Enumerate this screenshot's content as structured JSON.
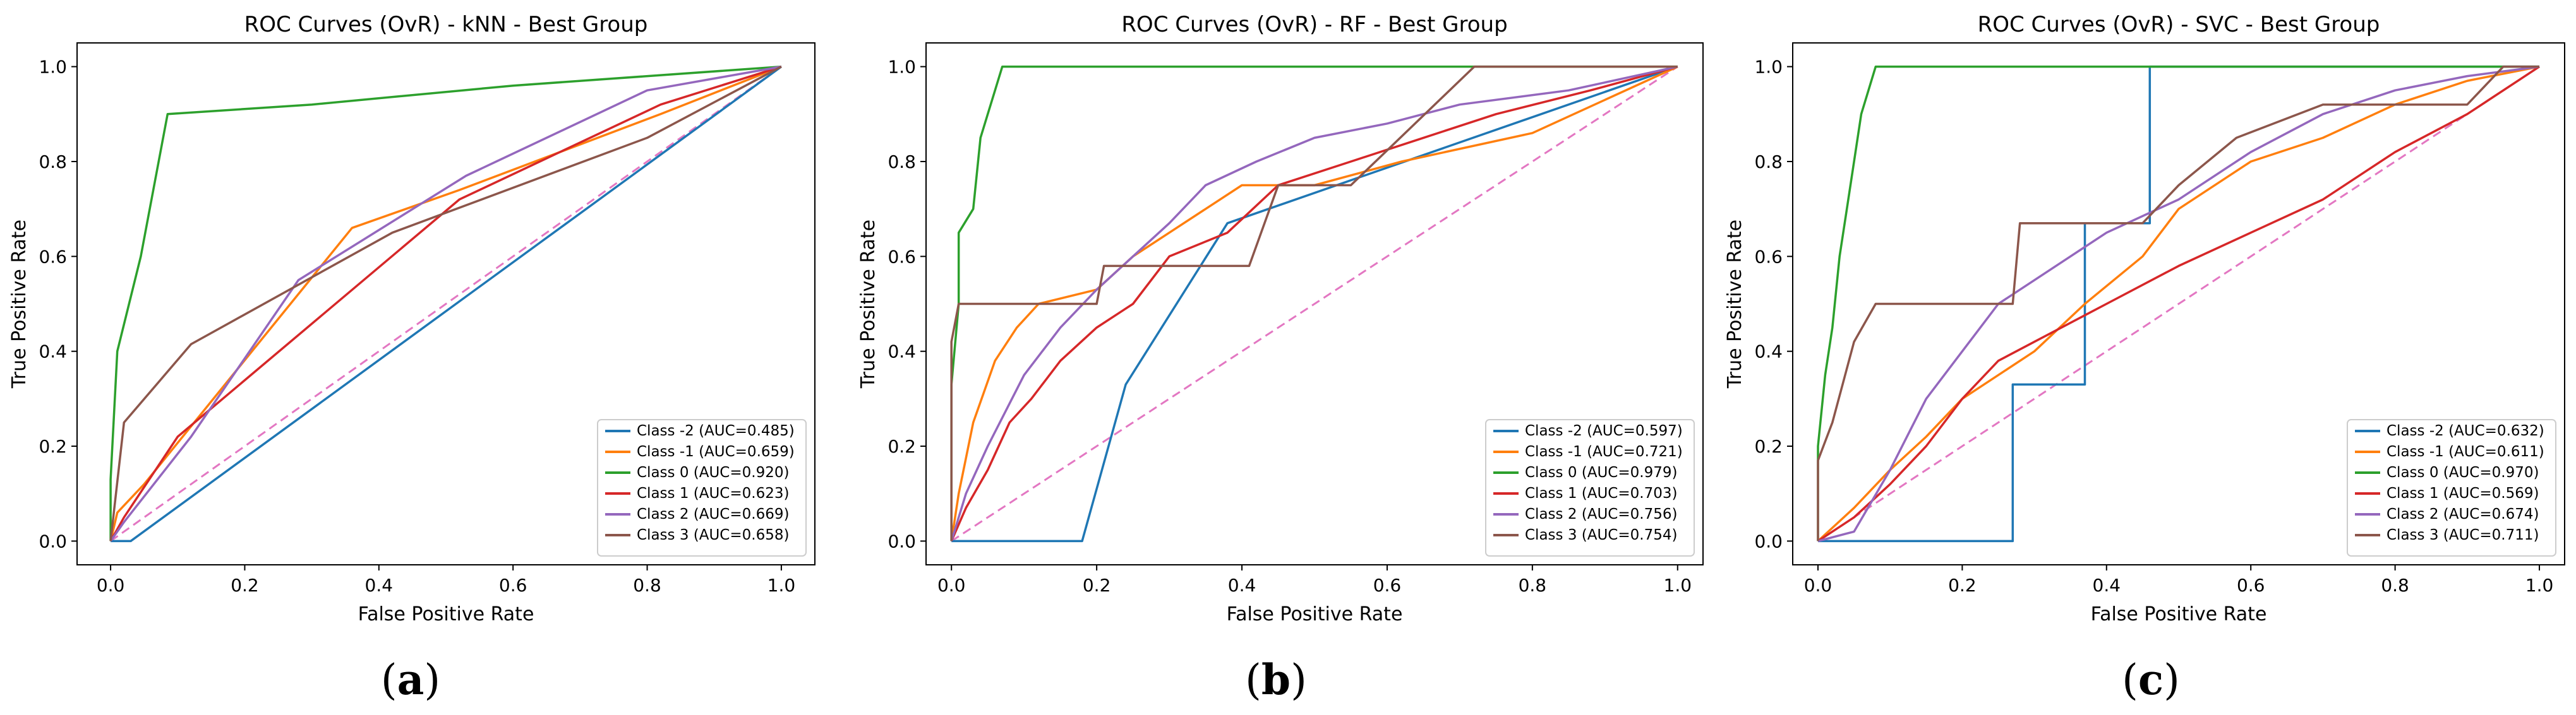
{
  "colors": {
    "class_m2": "#1f77b4",
    "class_m1": "#ff7f0e",
    "class_0": "#2ca02c",
    "class_1": "#d62728",
    "class_2": "#9467bd",
    "class_3": "#8c564b",
    "diagonal": "#e377c2"
  },
  "chart_data": [
    {
      "type": "line",
      "panel_label": "a",
      "title": "ROC Curves (OvR) - kNN - Best Group",
      "xlabel": "False Positive Rate",
      "ylabel": "True Positive Rate",
      "xlim": [
        -0.05,
        1.05
      ],
      "ylim": [
        -0.05,
        1.05
      ],
      "xticks": [
        "0.0",
        "0.2",
        "0.4",
        "0.6",
        "0.8",
        "1.0"
      ],
      "yticks": [
        "0.0",
        "0.2",
        "0.4",
        "0.6",
        "0.8",
        "1.0"
      ],
      "legend_position": "lower-right",
      "series": [
        {
          "name": "Class -2 (AUC=0.485)",
          "color_key": "class_m2",
          "points": [
            [
              0,
              0
            ],
            [
              0.03,
              0
            ],
            [
              1,
              1
            ]
          ]
        },
        {
          "name": "Class -1 (AUC=0.659)",
          "color_key": "class_m1",
          "points": [
            [
              0,
              0
            ],
            [
              0.01,
              0.06
            ],
            [
              0.05,
              0.12
            ],
            [
              0.36,
              0.66
            ],
            [
              0.52,
              0.74
            ],
            [
              0.82,
              0.9
            ],
            [
              1,
              1
            ]
          ]
        },
        {
          "name": "Class 0 (AUC=0.920)",
          "color_key": "class_0",
          "points": [
            [
              0,
              0
            ],
            [
              0,
              0.13
            ],
            [
              0.01,
              0.4
            ],
            [
              0.045,
              0.6
            ],
            [
              0.085,
              0.9
            ],
            [
              0.3,
              0.92
            ],
            [
              0.6,
              0.96
            ],
            [
              1,
              1
            ]
          ]
        },
        {
          "name": "Class 1 (AUC=0.623)",
          "color_key": "class_1",
          "points": [
            [
              0,
              0
            ],
            [
              0.02,
              0.05
            ],
            [
              0.1,
              0.22
            ],
            [
              0.52,
              0.72
            ],
            [
              0.82,
              0.92
            ],
            [
              1,
              1
            ]
          ]
        },
        {
          "name": "Class 2 (AUC=0.669)",
          "color_key": "class_2",
          "points": [
            [
              0,
              0
            ],
            [
              0.02,
              0.04
            ],
            [
              0.12,
              0.22
            ],
            [
              0.28,
              0.55
            ],
            [
              0.53,
              0.77
            ],
            [
              0.8,
              0.95
            ],
            [
              1,
              1
            ]
          ]
        },
        {
          "name": "Class 3 (AUC=0.658)",
          "color_key": "class_3",
          "points": [
            [
              0,
              0
            ],
            [
              0.02,
              0.25
            ],
            [
              0.12,
              0.415
            ],
            [
              0.42,
              0.65
            ],
            [
              0.8,
              0.85
            ],
            [
              1,
              1
            ]
          ]
        }
      ]
    },
    {
      "type": "line",
      "panel_label": "b",
      "title": "ROC Curves (OvR) - RF - Best Group",
      "xlabel": "False Positive Rate",
      "ylabel": "True Positive Rate",
      "xlim": [
        -0.035,
        1.035
      ],
      "ylim": [
        -0.05,
        1.05
      ],
      "xticks": [
        "0.0",
        "0.2",
        "0.4",
        "0.6",
        "0.8",
        "1.0"
      ],
      "yticks": [
        "0.0",
        "0.2",
        "0.4",
        "0.6",
        "0.8",
        "1.0"
      ],
      "legend_position": "lower-right",
      "series": [
        {
          "name": "Class -2 (AUC=0.597)",
          "color_key": "class_m2",
          "points": [
            [
              0,
              0
            ],
            [
              0.18,
              0
            ],
            [
              0.24,
              0.33
            ],
            [
              0.38,
              0.67
            ],
            [
              1,
              1
            ]
          ]
        },
        {
          "name": "Class -1 (AUC=0.721)",
          "color_key": "class_m1",
          "points": [
            [
              0,
              0
            ],
            [
              0.01,
              0.1
            ],
            [
              0.03,
              0.25
            ],
            [
              0.06,
              0.38
            ],
            [
              0.09,
              0.45
            ],
            [
              0.12,
              0.5
            ],
            [
              0.2,
              0.53
            ],
            [
              0.25,
              0.6
            ],
            [
              0.3,
              0.65
            ],
            [
              0.4,
              0.75
            ],
            [
              0.5,
              0.75
            ],
            [
              0.62,
              0.8
            ],
            [
              0.8,
              0.86
            ],
            [
              1,
              1
            ]
          ]
        },
        {
          "name": "Class 0 (AUC=0.979)",
          "color_key": "class_0",
          "points": [
            [
              0,
              0
            ],
            [
              0,
              0.33
            ],
            [
              0.01,
              0.5
            ],
            [
              0.01,
              0.65
            ],
            [
              0.03,
              0.7
            ],
            [
              0.04,
              0.85
            ],
            [
              0.05,
              0.9
            ],
            [
              0.06,
              0.95
            ],
            [
              0.07,
              1
            ],
            [
              0.4,
              1
            ],
            [
              1,
              1
            ]
          ]
        },
        {
          "name": "Class 1 (AUC=0.703)",
          "color_key": "class_1",
          "points": [
            [
              0,
              0
            ],
            [
              0.02,
              0.07
            ],
            [
              0.05,
              0.15
            ],
            [
              0.08,
              0.25
            ],
            [
              0.11,
              0.3
            ],
            [
              0.15,
              0.38
            ],
            [
              0.2,
              0.45
            ],
            [
              0.25,
              0.5
            ],
            [
              0.3,
              0.6
            ],
            [
              0.38,
              0.65
            ],
            [
              0.45,
              0.75
            ],
            [
              0.55,
              0.8
            ],
            [
              0.65,
              0.85
            ],
            [
              0.75,
              0.9
            ],
            [
              0.88,
              0.95
            ],
            [
              1,
              1
            ]
          ]
        },
        {
          "name": "Class 2 (AUC=0.756)",
          "color_key": "class_2",
          "points": [
            [
              0,
              0
            ],
            [
              0.02,
              0.1
            ],
            [
              0.05,
              0.2
            ],
            [
              0.1,
              0.35
            ],
            [
              0.15,
              0.45
            ],
            [
              0.2,
              0.53
            ],
            [
              0.25,
              0.6
            ],
            [
              0.3,
              0.67
            ],
            [
              0.35,
              0.75
            ],
            [
              0.42,
              0.8
            ],
            [
              0.5,
              0.85
            ],
            [
              0.6,
              0.88
            ],
            [
              0.7,
              0.92
            ],
            [
              0.85,
              0.95
            ],
            [
              1,
              1
            ]
          ]
        },
        {
          "name": "Class 3 (AUC=0.754)",
          "color_key": "class_3",
          "points": [
            [
              0,
              0
            ],
            [
              0,
              0.42
            ],
            [
              0.01,
              0.5
            ],
            [
              0.2,
              0.5
            ],
            [
              0.21,
              0.58
            ],
            [
              0.41,
              0.58
            ],
            [
              0.45,
              0.75
            ],
            [
              0.55,
              0.75
            ],
            [
              0.72,
              1
            ],
            [
              1,
              1
            ]
          ]
        }
      ]
    },
    {
      "type": "line",
      "panel_label": "c",
      "title": "ROC Curves (OvR) - SVC - Best Group",
      "xlabel": "False Positive Rate",
      "ylabel": "True Positive Rate",
      "xlim": [
        -0.035,
        1.035
      ],
      "ylim": [
        -0.05,
        1.05
      ],
      "xticks": [
        "0.0",
        "0.2",
        "0.4",
        "0.6",
        "0.8",
        "1.0"
      ],
      "yticks": [
        "0.0",
        "0.2",
        "0.4",
        "0.6",
        "0.8",
        "1.0"
      ],
      "legend_position": "lower-right",
      "series": [
        {
          "name": "Class -2 (AUC=0.632)",
          "color_key": "class_m2",
          "points": [
            [
              0,
              0
            ],
            [
              0.27,
              0
            ],
            [
              0.27,
              0.33
            ],
            [
              0.37,
              0.33
            ],
            [
              0.37,
              0.67
            ],
            [
              0.46,
              0.67
            ],
            [
              0.46,
              1
            ],
            [
              1,
              1
            ]
          ]
        },
        {
          "name": "Class -1 (AUC=0.611)",
          "color_key": "class_m1",
          "points": [
            [
              0,
              0
            ],
            [
              0.05,
              0.07
            ],
            [
              0.1,
              0.15
            ],
            [
              0.15,
              0.22
            ],
            [
              0.2,
              0.3
            ],
            [
              0.25,
              0.35
            ],
            [
              0.3,
              0.4
            ],
            [
              0.37,
              0.5
            ],
            [
              0.45,
              0.6
            ],
            [
              0.5,
              0.7
            ],
            [
              0.6,
              0.8
            ],
            [
              0.7,
              0.85
            ],
            [
              0.8,
              0.92
            ],
            [
              0.9,
              0.97
            ],
            [
              1,
              1
            ]
          ]
        },
        {
          "name": "Class 0 (AUC=0.970)",
          "color_key": "class_0",
          "points": [
            [
              0,
              0
            ],
            [
              0,
              0.2
            ],
            [
              0.01,
              0.35
            ],
            [
              0.02,
              0.45
            ],
            [
              0.03,
              0.6
            ],
            [
              0.04,
              0.7
            ],
            [
              0.05,
              0.8
            ],
            [
              0.06,
              0.9
            ],
            [
              0.07,
              0.95
            ],
            [
              0.08,
              1
            ],
            [
              1,
              1
            ]
          ]
        },
        {
          "name": "Class 1 (AUC=0.569)",
          "color_key": "class_1",
          "points": [
            [
              0,
              0
            ],
            [
              0.05,
              0.05
            ],
            [
              0.1,
              0.12
            ],
            [
              0.15,
              0.2
            ],
            [
              0.2,
              0.3
            ],
            [
              0.25,
              0.38
            ],
            [
              0.3,
              0.42
            ],
            [
              0.4,
              0.5
            ],
            [
              0.5,
              0.58
            ],
            [
              0.6,
              0.65
            ],
            [
              0.7,
              0.72
            ],
            [
              0.8,
              0.82
            ],
            [
              0.9,
              0.9
            ],
            [
              1,
              1
            ]
          ]
        },
        {
          "name": "Class 2 (AUC=0.674)",
          "color_key": "class_2",
          "points": [
            [
              0,
              0
            ],
            [
              0.05,
              0.02
            ],
            [
              0.1,
              0.15
            ],
            [
              0.15,
              0.3
            ],
            [
              0.2,
              0.4
            ],
            [
              0.25,
              0.5
            ],
            [
              0.3,
              0.55
            ],
            [
              0.35,
              0.6
            ],
            [
              0.4,
              0.65
            ],
            [
              0.5,
              0.72
            ],
            [
              0.6,
              0.82
            ],
            [
              0.7,
              0.9
            ],
            [
              0.8,
              0.95
            ],
            [
              0.9,
              0.98
            ],
            [
              1,
              1
            ]
          ]
        },
        {
          "name": "Class 3 (AUC=0.711)",
          "color_key": "class_3",
          "points": [
            [
              0,
              0
            ],
            [
              0,
              0.17
            ],
            [
              0.02,
              0.25
            ],
            [
              0.05,
              0.42
            ],
            [
              0.08,
              0.5
            ],
            [
              0.27,
              0.5
            ],
            [
              0.28,
              0.67
            ],
            [
              0.45,
              0.67
            ],
            [
              0.5,
              0.75
            ],
            [
              0.58,
              0.85
            ],
            [
              0.7,
              0.92
            ],
            [
              0.82,
              0.92
            ],
            [
              0.9,
              0.92
            ],
            [
              0.95,
              1
            ],
            [
              1,
              1
            ]
          ]
        }
      ]
    }
  ]
}
